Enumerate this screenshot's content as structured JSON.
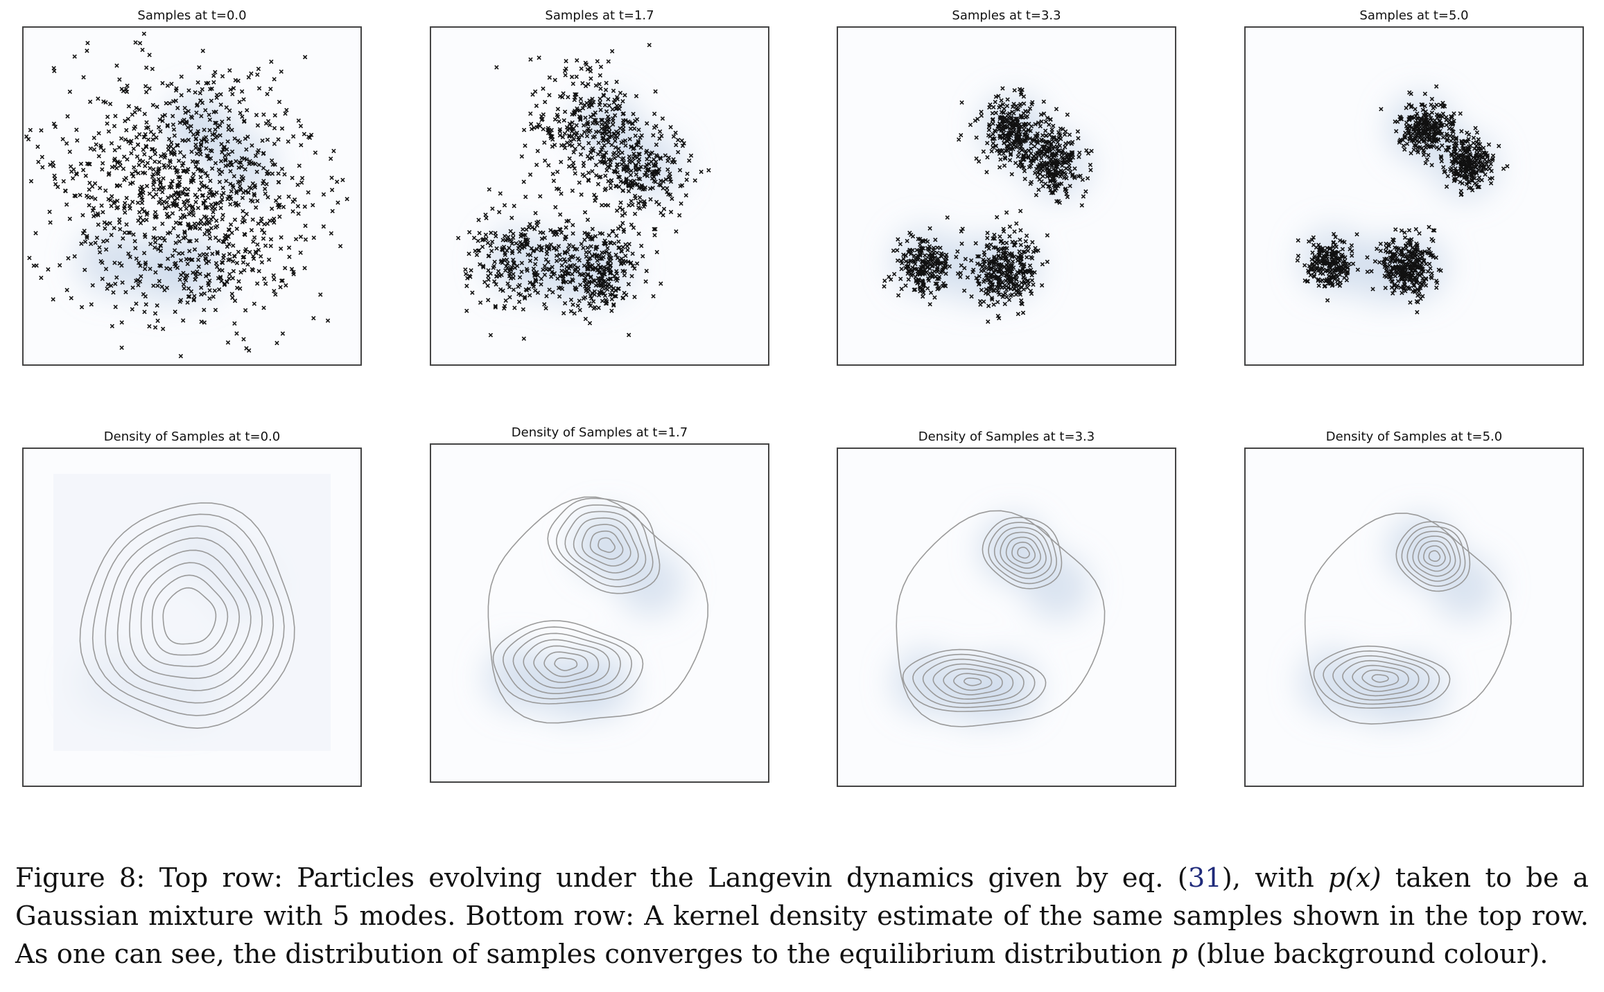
{
  "figure": {
    "top_titles": [
      "Samples at t=0.0",
      "Samples at t=1.7",
      "Samples at t=3.3",
      "Samples at t=5.0"
    ],
    "bottom_titles": [
      "Density of Samples at t=0.0",
      "Density of Samples at t=1.7",
      "Density of Samples at t=3.3",
      "Density of Samples at t=5.0"
    ],
    "caption": {
      "label": "Figure 8:",
      "text_1": "Top row: Particles evolving under the Langevin dynamics given by eq. (",
      "eq_ref": "31",
      "text_2": "), with ",
      "px": "p(x)",
      "text_3": " taken to be a Gaussian mixture with 5 modes. Bottom row: A kernel density estimate of the same samples shown in the top row. As one can see, the distribution of samples converges to the equilibrium distribution ",
      "p": "p",
      "text_4": " (blue background colour)."
    }
  },
  "chart_data": [
    {
      "type": "scatter",
      "title": "Samples at t=0.0",
      "t": 0.0,
      "marker": "x",
      "n_modes": 5,
      "clusters": [
        {
          "center": [
            0.49,
            0.49
          ],
          "spread": 0.19,
          "fraction": 1.0
        }
      ],
      "axes_visible": false
    },
    {
      "type": "scatter",
      "title": "Samples at t=1.7",
      "t": 1.7,
      "marker": "x",
      "n_modes": 5,
      "clusters": [
        {
          "center": [
            0.47,
            0.3
          ],
          "spread": 0.085,
          "fraction": 0.28
        },
        {
          "center": [
            0.62,
            0.43
          ],
          "spread": 0.07,
          "fraction": 0.22
        },
        {
          "center": [
            0.27,
            0.69
          ],
          "spread": 0.08,
          "fraction": 0.24
        },
        {
          "center": [
            0.5,
            0.72
          ],
          "spread": 0.065,
          "fraction": 0.26
        }
      ],
      "axes_visible": false
    },
    {
      "type": "scatter",
      "title": "Samples at t=3.3",
      "t": 3.3,
      "marker": "x",
      "n_modes": 5,
      "clusters": [
        {
          "center": [
            0.52,
            0.31
          ],
          "spread": 0.05,
          "fraction": 0.27
        },
        {
          "center": [
            0.64,
            0.4
          ],
          "spread": 0.045,
          "fraction": 0.23
        },
        {
          "center": [
            0.26,
            0.7
          ],
          "spread": 0.04,
          "fraction": 0.2
        },
        {
          "center": [
            0.49,
            0.72
          ],
          "spread": 0.05,
          "fraction": 0.3
        }
      ],
      "axes_visible": false
    },
    {
      "type": "scatter",
      "title": "Samples at t=5.0",
      "t": 5.0,
      "marker": "x",
      "n_modes": 5,
      "clusters": [
        {
          "center": [
            0.54,
            0.3
          ],
          "spread": 0.038,
          "fraction": 0.26
        },
        {
          "center": [
            0.66,
            0.4
          ],
          "spread": 0.035,
          "fraction": 0.24
        },
        {
          "center": [
            0.25,
            0.7
          ],
          "spread": 0.035,
          "fraction": 0.2
        },
        {
          "center": [
            0.48,
            0.71
          ],
          "spread": 0.04,
          "fraction": 0.3
        }
      ],
      "axes_visible": false
    },
    {
      "type": "heatmap",
      "title": "Density of Samples at t=0.0",
      "t": 0.0,
      "contour_levels": 8,
      "axes_visible": false
    },
    {
      "type": "heatmap",
      "title": "Density of Samples at t=1.7",
      "t": 1.7,
      "contour_levels": 8,
      "axes_visible": false
    },
    {
      "type": "heatmap",
      "title": "Density of Samples at t=3.3",
      "t": 3.3,
      "contour_levels": 8,
      "axes_visible": false
    },
    {
      "type": "heatmap",
      "title": "Density of Samples at t=5.0",
      "t": 5.0,
      "contour_levels": 8,
      "axes_visible": false
    }
  ],
  "equilibrium_modes": [
    {
      "center": [
        0.52,
        0.3
      ],
      "weight": 1.0
    },
    {
      "center": [
        0.65,
        0.41
      ],
      "weight": 0.9
    },
    {
      "center": [
        0.26,
        0.69
      ],
      "weight": 0.9
    },
    {
      "center": [
        0.4,
        0.72
      ],
      "weight": 0.8
    },
    {
      "center": [
        0.5,
        0.71
      ],
      "weight": 0.9
    }
  ],
  "colors": {
    "background_density": "#b8cbe2",
    "marker": "#111111",
    "contour": "#9a9a9a",
    "frame": "#444444"
  }
}
